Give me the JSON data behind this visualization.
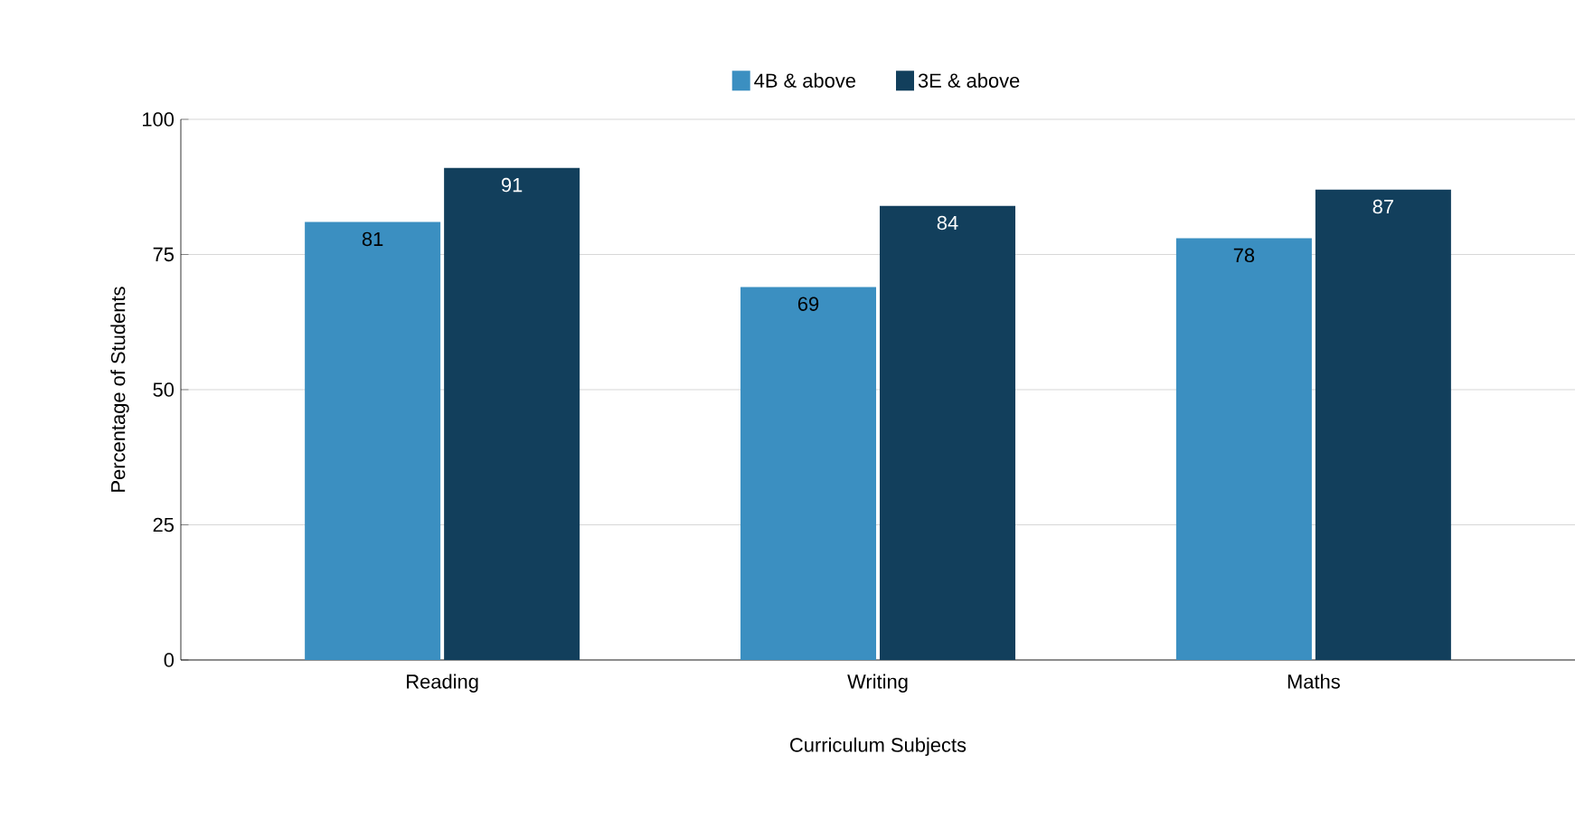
{
  "chart_data": {
    "type": "bar",
    "xlabel": "Curriculum Subjects",
    "ylabel": "Percentage of Students",
    "categories": [
      "Reading",
      "Writing",
      "Maths"
    ],
    "series": [
      {
        "name": "4B & above",
        "color": "#3b8fc1",
        "values": [
          81,
          69,
          78
        ]
      },
      {
        "name": "3E & above",
        "color": "#123f5c",
        "values": [
          91,
          84,
          87
        ]
      }
    ],
    "ylim": [
      0,
      100
    ],
    "yticks": [
      0,
      25,
      50,
      75,
      100
    ],
    "grid": "y",
    "legend": "top",
    "data_labels": true
  }
}
